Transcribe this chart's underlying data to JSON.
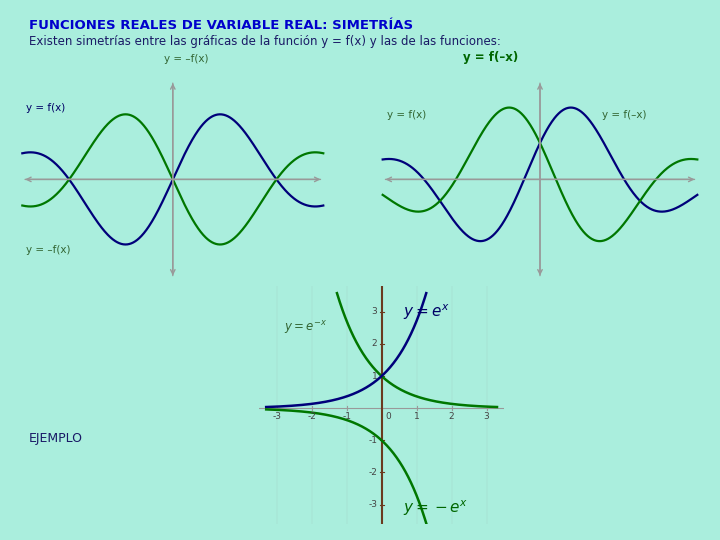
{
  "bg_color": "#aaeedd",
  "title": "FUNCIONES REALES DE VARIABLE REAL: SIMETRÍAS",
  "subtitle": "Existen simetrías entre las gráficas de la función y = f(x) y las de las funciones:",
  "title_color": "#0000cc",
  "subtitle_color": "#1a1a66",
  "axis_color": "#999999",
  "curve_blue": "#00007a",
  "curve_green": "#007700",
  "label_green_bold": "#006600",
  "label_green_plain": "#336633",
  "label_blue": "#000066",
  "panel1": {
    "top_label": "y = –f(x)",
    "fx_label": "y = f(x)",
    "neg_fx_label": "y = –f(x)"
  },
  "panel2": {
    "top_label": "y = f(–x)",
    "fx_label": "y = f(x)",
    "fnx_label": "y = f(–x)"
  },
  "ejemplo": "EJEMPLO"
}
